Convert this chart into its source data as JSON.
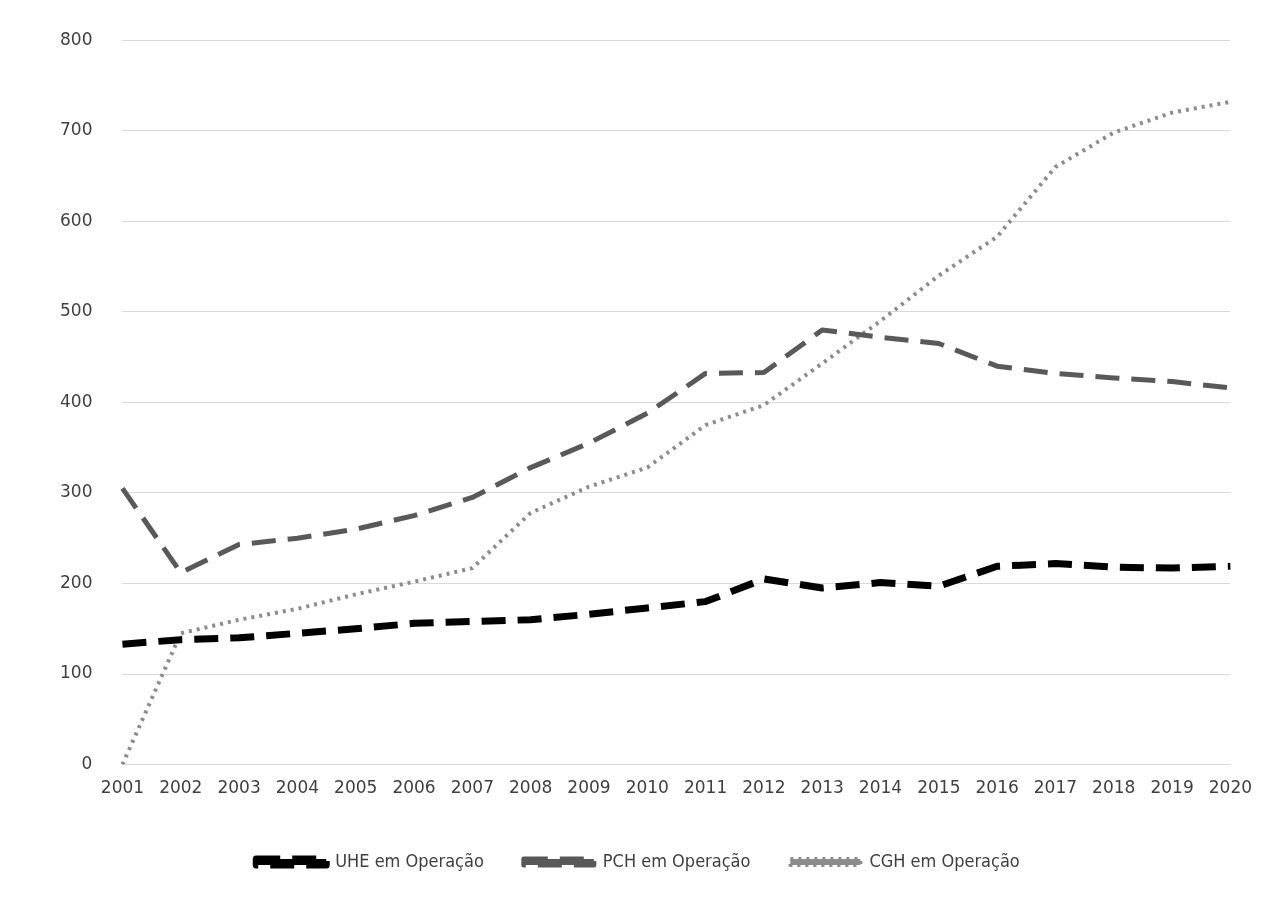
{
  "chart_data": {
    "type": "line",
    "categories": [
      "2001",
      "2002",
      "2003",
      "2004",
      "2005",
      "2006",
      "2007",
      "2008",
      "2009",
      "2010",
      "2011",
      "2012",
      "2013",
      "2014",
      "2015",
      "2016",
      "2017",
      "2018",
      "2019",
      "2020"
    ],
    "series": [
      {
        "name": "UHE em Operação",
        "color": "#000000",
        "line_style": "dashed",
        "values": [
          133,
          138,
          140,
          145,
          150,
          156,
          158,
          160,
          166,
          173,
          180,
          205,
          195,
          201,
          197,
          219,
          222,
          218,
          217,
          219
        ]
      },
      {
        "name": "PCH em Operação",
        "color": "#595959",
        "line_style": "dashed",
        "values": [
          305,
          212,
          243,
          250,
          260,
          275,
          295,
          328,
          355,
          388,
          432,
          433,
          480,
          472,
          465,
          440,
          432,
          427,
          423,
          416
        ]
      },
      {
        "name": "CGH em Operação",
        "color": "#8c8c8c",
        "line_style": "dotted",
        "values": [
          0,
          145,
          160,
          172,
          188,
          202,
          217,
          278,
          307,
          328,
          375,
          397,
          443,
          490,
          540,
          583,
          660,
          698,
          720,
          732
        ]
      }
    ],
    "ylim": [
      0,
      800
    ],
    "yticks": [
      0,
      100,
      200,
      300,
      400,
      500,
      600,
      700,
      800
    ],
    "grid": "y",
    "legend": "bottom",
    "marker": "none"
  }
}
